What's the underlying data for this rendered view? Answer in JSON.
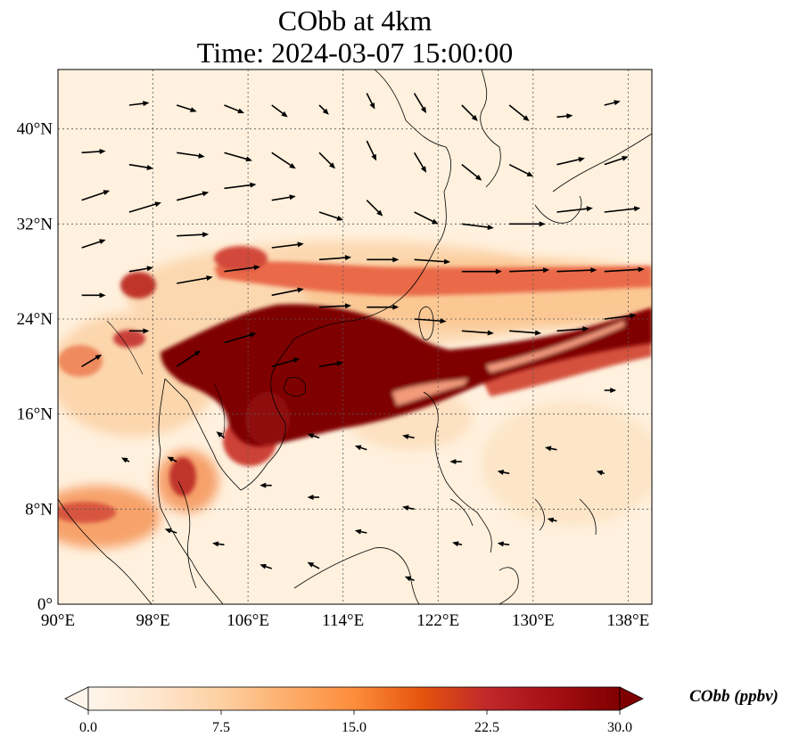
{
  "map": {
    "title_line1": "CObb at 4km",
    "title_line2": "Time: 2024-03-07 15:00:00",
    "extent": {
      "lon": [
        90,
        140
      ],
      "lat": [
        0,
        45
      ]
    },
    "gridlines": "dotted",
    "lon_ticks": [
      {
        "value": 90,
        "label": "90°E"
      },
      {
        "value": 98,
        "label": "98°E"
      },
      {
        "value": 106,
        "label": "106°E"
      },
      {
        "value": 114,
        "label": "114°E"
      },
      {
        "value": 122,
        "label": "122°E"
      },
      {
        "value": 130,
        "label": "130°E"
      },
      {
        "value": 138,
        "label": "138°E"
      }
    ],
    "lat_ticks": [
      {
        "value": 0,
        "label": "0°"
      },
      {
        "value": 8,
        "label": "8°N"
      },
      {
        "value": 16,
        "label": "16°N"
      },
      {
        "value": 24,
        "label": "24°N"
      },
      {
        "value": 32,
        "label": "32°N"
      },
      {
        "value": 40,
        "label": "40°N"
      }
    ],
    "layers": [
      "CObb concentration field",
      "wind vectors",
      "coastlines"
    ]
  },
  "colorbar": {
    "label": "CObb (ppbv)",
    "min": 0,
    "max": 30,
    "extend": "both",
    "ticks": [
      "0.0",
      "7.5",
      "15.0",
      "22.5",
      "30.0"
    ],
    "colors": [
      "#fff5eb",
      "#fee6ce",
      "#fdd0a2",
      "#fdae6b",
      "#fd8d3c",
      "#e6550d",
      "#c0282b",
      "#a50f15",
      "#7f0000"
    ]
  },
  "plumes": [
    {
      "name": "main-plume",
      "lon": [
        103,
        125
      ],
      "lat": [
        17,
        24
      ]
    },
    {
      "name": "east-plume",
      "lon": [
        124,
        140
      ],
      "lat": [
        18,
        25
      ]
    },
    {
      "name": "northern-band",
      "lon": [
        106,
        140
      ],
      "lat": [
        26,
        30
      ]
    }
  ],
  "wind_arrows": [
    {
      "lon": 92,
      "lat": 38,
      "u": 3,
      "v": 0.2
    },
    {
      "lon": 92,
      "lat": 34,
      "u": 3.5,
      "v": 1.2
    },
    {
      "lon": 92,
      "lat": 30,
      "u": 3,
      "v": 1
    },
    {
      "lon": 92,
      "lat": 26,
      "u": 3,
      "v": 0
    },
    {
      "lon": 92,
      "lat": 20,
      "u": 2.5,
      "v": 1.5
    },
    {
      "lon": 96,
      "lat": 42,
      "u": 2.5,
      "v": 0.3
    },
    {
      "lon": 96,
      "lat": 37,
      "u": 3,
      "v": -0.5
    },
    {
      "lon": 96,
      "lat": 33,
      "u": 4,
      "v": 1.2
    },
    {
      "lon": 96,
      "lat": 28,
      "u": 3,
      "v": 0.5
    },
    {
      "lon": 96,
      "lat": 23,
      "u": 2.5,
      "v": 0
    },
    {
      "lon": 96,
      "lat": 12,
      "u": -1,
      "v": 0.5
    },
    {
      "lon": 100,
      "lat": 42,
      "u": 2.5,
      "v": -0.8
    },
    {
      "lon": 100,
      "lat": 38,
      "u": 3.5,
      "v": -0.5
    },
    {
      "lon": 100,
      "lat": 34,
      "u": 4,
      "v": 1
    },
    {
      "lon": 100,
      "lat": 31,
      "u": 4,
      "v": 0.2
    },
    {
      "lon": 100,
      "lat": 27,
      "u": 4.5,
      "v": 0.8
    },
    {
      "lon": 100,
      "lat": 20,
      "u": 3,
      "v": 2
    },
    {
      "lon": 100,
      "lat": 12,
      "u": -1.2,
      "v": 0.6
    },
    {
      "lon": 100,
      "lat": 6,
      "u": -1.5,
      "v": 0.5
    },
    {
      "lon": 104,
      "lat": 42,
      "u": 2.5,
      "v": -1
    },
    {
      "lon": 104,
      "lat": 38,
      "u": 3.5,
      "v": -1
    },
    {
      "lon": 104,
      "lat": 35,
      "u": 4,
      "v": 0.5
    },
    {
      "lon": 104,
      "lat": 28,
      "u": 4.5,
      "v": 0.6
    },
    {
      "lon": 104,
      "lat": 22,
      "u": 4,
      "v": 1.2
    },
    {
      "lon": 104,
      "lat": 14,
      "u": -1,
      "v": 0.8
    },
    {
      "lon": 104,
      "lat": 5,
      "u": -1.5,
      "v": 0.2
    },
    {
      "lon": 108,
      "lat": 42,
      "u": 2,
      "v": -1.5
    },
    {
      "lon": 108,
      "lat": 38,
      "u": 3,
      "v": -2
    },
    {
      "lon": 108,
      "lat": 34,
      "u": 3,
      "v": 0.5
    },
    {
      "lon": 108,
      "lat": 30,
      "u": 4,
      "v": 0.5
    },
    {
      "lon": 108,
      "lat": 26,
      "u": 4,
      "v": 0.8
    },
    {
      "lon": 108,
      "lat": 20,
      "u": 3.5,
      "v": 1
    },
    {
      "lon": 108,
      "lat": 10,
      "u": -1.5,
      "v": 0
    },
    {
      "lon": 108,
      "lat": 3,
      "u": -1.5,
      "v": 0.5
    },
    {
      "lon": 112,
      "lat": 42,
      "u": 1.2,
      "v": -1.2
    },
    {
      "lon": 112,
      "lat": 38,
      "u": 2,
      "v": -2
    },
    {
      "lon": 112,
      "lat": 33,
      "u": 3,
      "v": -1
    },
    {
      "lon": 112,
      "lat": 29,
      "u": 4,
      "v": 0.3
    },
    {
      "lon": 112,
      "lat": 25,
      "u": 4,
      "v": 0.2
    },
    {
      "lon": 112,
      "lat": 20,
      "u": 3,
      "v": 0.5
    },
    {
      "lon": 112,
      "lat": 14,
      "u": -1.5,
      "v": 0.5
    },
    {
      "lon": 112,
      "lat": 9,
      "u": -1.5,
      "v": 0
    },
    {
      "lon": 112,
      "lat": 3,
      "u": -1.5,
      "v": 0.8
    },
    {
      "lon": 116,
      "lat": 43,
      "u": 1,
      "v": -2
    },
    {
      "lon": 116,
      "lat": 39,
      "u": 1.2,
      "v": -2.5
    },
    {
      "lon": 116,
      "lat": 34,
      "u": 2,
      "v": -2
    },
    {
      "lon": 116,
      "lat": 29,
      "u": 4,
      "v": 0
    },
    {
      "lon": 116,
      "lat": 25,
      "u": 4,
      "v": 0
    },
    {
      "lon": 116,
      "lat": 13,
      "u": -1.5,
      "v": 0.5
    },
    {
      "lon": 116,
      "lat": 6,
      "u": -1.5,
      "v": 0.3
    },
    {
      "lon": 120,
      "lat": 43,
      "u": 1.5,
      "v": -2.5
    },
    {
      "lon": 120,
      "lat": 38,
      "u": 1.5,
      "v": -2.5
    },
    {
      "lon": 120,
      "lat": 33,
      "u": 3,
      "v": -1.5
    },
    {
      "lon": 120,
      "lat": 29,
      "u": 4.5,
      "v": -0.3
    },
    {
      "lon": 120,
      "lat": 24,
      "u": 4,
      "v": -0.3
    },
    {
      "lon": 120,
      "lat": 14,
      "u": -1.5,
      "v": 0.3
    },
    {
      "lon": 120,
      "lat": 8,
      "u": -1.5,
      "v": 0.3
    },
    {
      "lon": 120,
      "lat": 2,
      "u": -1.2,
      "v": 0.5
    },
    {
      "lon": 124,
      "lat": 42,
      "u": 2,
      "v": -2
    },
    {
      "lon": 124,
      "lat": 37,
      "u": 2.5,
      "v": -2
    },
    {
      "lon": 124,
      "lat": 32,
      "u": 4,
      "v": -0.5
    },
    {
      "lon": 124,
      "lat": 28,
      "u": 5,
      "v": 0
    },
    {
      "lon": 124,
      "lat": 23,
      "u": 4,
      "v": -0.3
    },
    {
      "lon": 124,
      "lat": 12,
      "u": -1.5,
      "v": 0
    },
    {
      "lon": 124,
      "lat": 5,
      "u": -1.2,
      "v": 0.3
    },
    {
      "lon": 128,
      "lat": 42,
      "u": 2.5,
      "v": -2
    },
    {
      "lon": 128,
      "lat": 37,
      "u": 3,
      "v": -1.5
    },
    {
      "lon": 128,
      "lat": 32,
      "u": 4.5,
      "v": 0
    },
    {
      "lon": 128,
      "lat": 28,
      "u": 5,
      "v": 0.2
    },
    {
      "lon": 128,
      "lat": 23,
      "u": 4,
      "v": -0.3
    },
    {
      "lon": 128,
      "lat": 11,
      "u": -1.5,
      "v": 0.3
    },
    {
      "lon": 128,
      "lat": 5,
      "u": -1.5,
      "v": 0.2
    },
    {
      "lon": 132,
      "lat": 41,
      "u": 2,
      "v": 0.2
    },
    {
      "lon": 132,
      "lat": 37,
      "u": 3.5,
      "v": 0.8
    },
    {
      "lon": 132,
      "lat": 33,
      "u": 4.5,
      "v": 0.5
    },
    {
      "lon": 132,
      "lat": 28,
      "u": 5,
      "v": 0.2
    },
    {
      "lon": 132,
      "lat": 23,
      "u": 4,
      "v": 0.3
    },
    {
      "lon": 132,
      "lat": 13,
      "u": -1.5,
      "v": 0.3
    },
    {
      "lon": 132,
      "lat": 7,
      "u": -1.2,
      "v": 0.3
    },
    {
      "lon": 136,
      "lat": 42,
      "u": 2,
      "v": 0.5
    },
    {
      "lon": 136,
      "lat": 37,
      "u": 3,
      "v": 1
    },
    {
      "lon": 136,
      "lat": 33,
      "u": 4.5,
      "v": 0.5
    },
    {
      "lon": 136,
      "lat": 28,
      "u": 5,
      "v": 0.3
    },
    {
      "lon": 136,
      "lat": 24,
      "u": 4,
      "v": 0.5
    },
    {
      "lon": 136,
      "lat": 18,
      "u": 1.5,
      "v": 0
    },
    {
      "lon": 136,
      "lat": 11,
      "u": -1,
      "v": 0.3
    }
  ]
}
